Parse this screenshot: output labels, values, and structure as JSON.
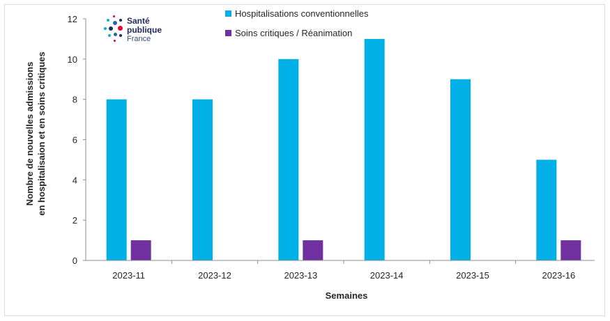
{
  "logo": {
    "line1": "Santé",
    "line2": "publique",
    "line3": "France",
    "colors": {
      "navy": "#1f2a5c",
      "red": "#e4003a",
      "cyan": "#00b1e3",
      "blue": "#2b5fb0"
    }
  },
  "chart_data": {
    "type": "bar",
    "categories": [
      "2023-11",
      "2023-12",
      "2023-13",
      "2023-14",
      "2023-15",
      "2023-16"
    ],
    "series": [
      {
        "name": "Hospitalisations conventionnelles",
        "values": [
          8,
          8,
          10,
          11,
          9,
          5
        ],
        "color": "#00b0e6"
      },
      {
        "name": "Soins critiques / Réanimation",
        "values": [
          1,
          0,
          1,
          0,
          0,
          1
        ],
        "color": "#7030a0"
      }
    ],
    "xlabel": "Semaines",
    "ylabel": [
      "Nombre de nouvelles admissions",
      "en hospitalisaion  et en soins critiques"
    ],
    "ylim": [
      0,
      12
    ],
    "yticks": [
      0,
      2,
      4,
      6,
      8,
      10,
      12
    ],
    "grid": false,
    "legend_position": "top"
  }
}
